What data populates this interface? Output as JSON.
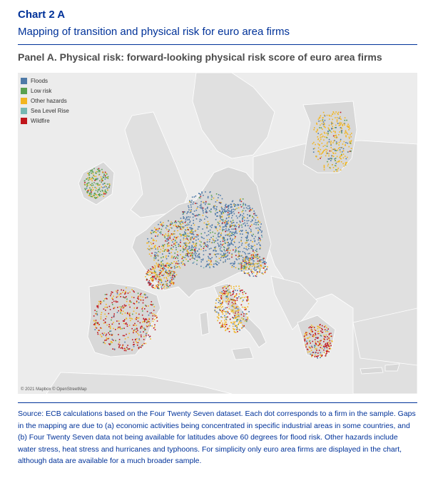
{
  "header": {
    "chart_label": "Chart 2 A",
    "subtitle": "Mapping of transition and physical risk for euro area firms"
  },
  "panel": {
    "title": "Panel A. Physical risk: forward-looking physical risk score of euro area firms"
  },
  "map": {
    "attribution": "© 2021 Mapbox © OpenStreetMap",
    "legend": [
      {
        "label": "Floods",
        "color": "#4e79a7"
      },
      {
        "label": "Low risk",
        "color": "#59a14f"
      },
      {
        "label": "Other hazards",
        "color": "#f2b51f"
      },
      {
        "label": "Sea Level Rise",
        "color": "#76b7b2"
      },
      {
        "label": "Wildfire",
        "color": "#c0151b"
      }
    ],
    "colors": {
      "sea": "#ececec",
      "euro_land": "#d8d8d8",
      "other_land": "#e0e0e0"
    }
  },
  "footer": {
    "source": "Source: ECB calculations based on the Four Twenty Seven dataset. Each dot corresponds to a firm in the sample. Gaps in the mapping are due to (a) economic activities being concentrated in specific industrial areas in some countries, and (b) Four Twenty Seven data not being available for latitudes above 60 degrees for flood risk. Other hazards include water stress, heat stress and hurricanes and typhoons. For simplicity only euro area firms are displayed in the chart, although data are available for a much broader sample."
  }
}
